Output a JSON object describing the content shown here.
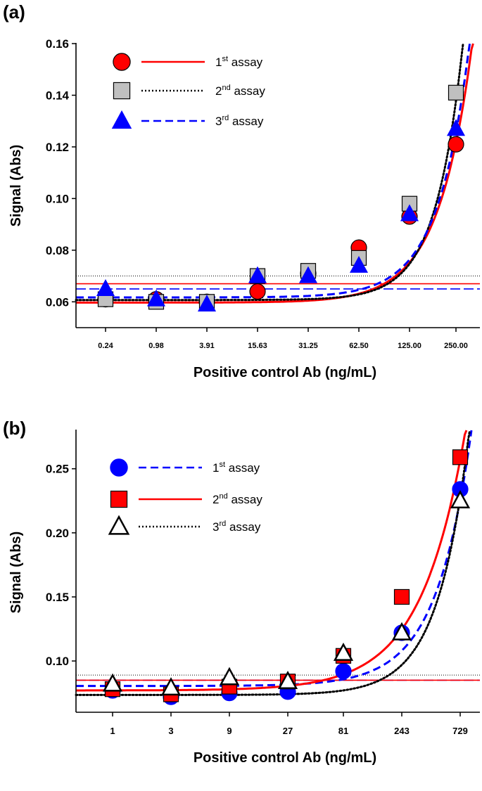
{
  "chart_data": [
    {
      "panel": "(a)",
      "type": "scatter",
      "xlabel": "Positive control Ab (ng/mL)",
      "ylabel": "Signal (Abs)",
      "ylim": [
        0.05,
        0.16
      ],
      "yticks": [
        "0.06",
        "0.08",
        "0.10",
        "0.12",
        "0.14",
        "0.16"
      ],
      "categories": [
        "0.24",
        "0.98",
        "3.91",
        "15.63",
        "31.25",
        "62.50",
        "125.00",
        "250.00"
      ],
      "x": [
        0.24,
        0.98,
        3.91,
        15.63,
        31.25,
        62.5,
        125.0,
        250.0
      ],
      "legend_position": "top-left",
      "series": [
        {
          "name": "1st assay",
          "ordinal": "1",
          "suffix": "st",
          "label_rest": " assay",
          "marker": "circle",
          "marker_color": "#ff0000",
          "line_style": "solid",
          "line_color": "#ff0000",
          "values": [
            0.061,
            0.061,
            0.06,
            0.064,
            0.071,
            0.081,
            0.093,
            0.121
          ],
          "cutpoint": 0.067,
          "fit": {
            "a": 0.0597,
            "b": 0.0618,
            "n": 1.5,
            "k": 250
          }
        },
        {
          "name": "2nd assay",
          "ordinal": "2",
          "suffix": "nd",
          "label_rest": " assay",
          "marker": "square",
          "marker_color": "#c0c0c0",
          "line_style": "dotted",
          "line_color": "#000000",
          "values": [
            0.061,
            0.06,
            0.06,
            0.07,
            0.072,
            0.077,
            0.098,
            0.141
          ],
          "cutpoint": 0.07,
          "fit": {
            "a": 0.0607,
            "b": 0.077,
            "n": 1.85,
            "k": 250
          }
        },
        {
          "name": "3rd assay",
          "ordinal": "3",
          "suffix": "rd",
          "label_rest": " assay",
          "marker": "triangle",
          "marker_color": "#0000ff",
          "line_style": "dashed",
          "line_color": "#0000ff",
          "values": [
            0.065,
            0.061,
            0.059,
            0.07,
            0.07,
            0.074,
            0.094,
            0.127
          ],
          "cutpoint": 0.065,
          "fit": {
            "a": 0.0617,
            "b": 0.064,
            "n": 1.6,
            "k": 250
          }
        }
      ]
    },
    {
      "panel": "(b)",
      "type": "scatter",
      "xlabel": "Positive control Ab (ng/mL)",
      "ylabel": "Signal (Abs)",
      "ylim": [
        0.06,
        0.28
      ],
      "yticks": [
        "0.10",
        "0.15",
        "0.20",
        "0.25"
      ],
      "categories": [
        "1",
        "3",
        "9",
        "27",
        "81",
        "243",
        "729"
      ],
      "x": [
        1,
        3,
        9,
        27,
        81,
        243,
        729
      ],
      "legend_position": "top-left",
      "series": [
        {
          "name": "1st assay",
          "ordinal": "1",
          "suffix": "st",
          "label_rest": " assay",
          "marker": "circle",
          "marker_color": "#0000ff",
          "line_style": "dashed",
          "line_color": "#0000ff",
          "values": [
            0.077,
            0.072,
            0.075,
            0.076,
            0.092,
            0.122,
            0.234
          ],
          "cutpoint": 0.085,
          "fit": {
            "a": 0.0805,
            "b": 0.145,
            "n": 1.5,
            "k": 729
          }
        },
        {
          "name": "2nd assay",
          "ordinal": "2",
          "suffix": "nd",
          "label_rest": " assay",
          "marker": "square",
          "marker_color": "#ff0000",
          "line_style": "solid",
          "line_color": "#ff0000",
          "values": [
            0.078,
            0.074,
            0.08,
            0.084,
            0.104,
            0.15,
            0.259
          ],
          "cutpoint": 0.085,
          "fit": {
            "a": 0.077,
            "b": 0.18,
            "n": 1.2,
            "k": 729
          }
        },
        {
          "name": "3rd assay",
          "ordinal": "3",
          "suffix": "rd",
          "label_rest": " assay",
          "marker": "triangle",
          "marker_color": "#ffffff",
          "line_style": "dotted",
          "line_color": "#000000",
          "values": [
            0.082,
            0.079,
            0.087,
            0.084,
            0.106,
            0.122,
            0.225
          ],
          "cutpoint": 0.089,
          "fit": {
            "a": 0.0735,
            "b": 0.154,
            "n": 1.7,
            "k": 729
          }
        }
      ]
    }
  ]
}
